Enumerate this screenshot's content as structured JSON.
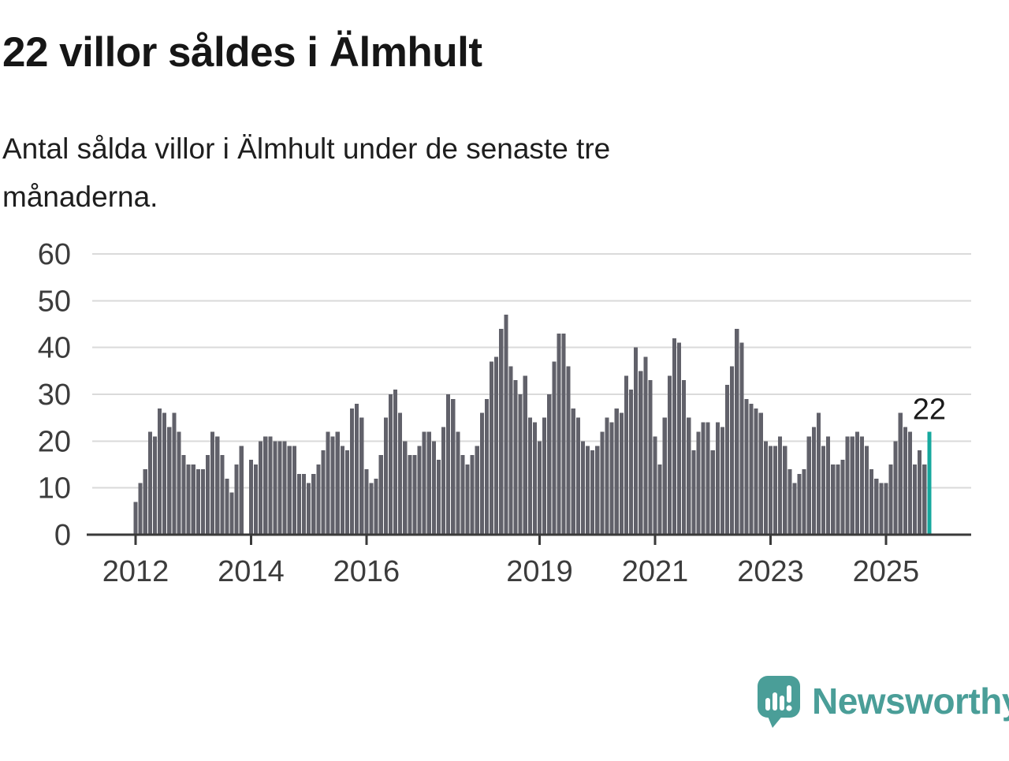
{
  "header": {
    "title": "22 villor såldes i Älmhult",
    "subtitle_line1": "Antal sålda villor i Älmhult under de senaste tre",
    "subtitle_line2": "månaderna."
  },
  "chart_data": {
    "type": "bar",
    "title": "22 villor såldes i Älmhult",
    "subtitle": "Antal sålda villor i Älmhult under de senaste tre månaderna.",
    "ylabel": "",
    "xlabel": "",
    "ylim": [
      0,
      60
    ],
    "grid": true,
    "y_ticks": [
      0,
      10,
      20,
      30,
      40,
      50,
      60
    ],
    "x_tick_labels": [
      "2012",
      "2014",
      "2016",
      "2019",
      "2021",
      "2023",
      "2025"
    ],
    "x_tick_month_indices": [
      0,
      24,
      48,
      84,
      108,
      132,
      156
    ],
    "series_start_month": "2012-01",
    "values": [
      7,
      11,
      14,
      22,
      21,
      27,
      26,
      23,
      26,
      22,
      17,
      15,
      15,
      14,
      14,
      17,
      22,
      21,
      17,
      12,
      9,
      15,
      19,
      null,
      16,
      15,
      20,
      21,
      21,
      20,
      20,
      20,
      19,
      19,
      13,
      13,
      11,
      13,
      15,
      18,
      22,
      21,
      22,
      19,
      18,
      27,
      28,
      25,
      14,
      11,
      12,
      17,
      25,
      30,
      31,
      26,
      20,
      17,
      17,
      19,
      22,
      22,
      20,
      16,
      23,
      30,
      29,
      22,
      17,
      15,
      17,
      19,
      26,
      29,
      37,
      38,
      44,
      47,
      36,
      33,
      30,
      34,
      25,
      24,
      20,
      25,
      30,
      37,
      43,
      43,
      36,
      27,
      25,
      20,
      19,
      18,
      19,
      22,
      25,
      24,
      27,
      26,
      34,
      31,
      40,
      35,
      38,
      33,
      21,
      15,
      25,
      34,
      42,
      41,
      33,
      25,
      18,
      22,
      24,
      24,
      18,
      24,
      23,
      32,
      36,
      44,
      41,
      29,
      28,
      27,
      26,
      20,
      19,
      19,
      21,
      19,
      14,
      11,
      13,
      14,
      21,
      23,
      26,
      19,
      21,
      15,
      15,
      16,
      21,
      21,
      22,
      21,
      19,
      14,
      12,
      11,
      11,
      15,
      20,
      26,
      23,
      22,
      15,
      18,
      15,
      22
    ],
    "highlight_last_bar": true,
    "annotation": {
      "text": "22",
      "value": 22
    },
    "legend": "none",
    "colors": {
      "bar": "#61616a",
      "highlight": "#16a89e",
      "grid": "#dadada",
      "axis": "#3a3a3a",
      "tick_text": "#3c3c3c",
      "annotation_text": "#1a1a1a"
    }
  },
  "footer": {
    "brand_name": "Newsworthy",
    "logo_icon": "speech-bubble-bar-chart-icon",
    "brand_color": "#4a9e98"
  }
}
